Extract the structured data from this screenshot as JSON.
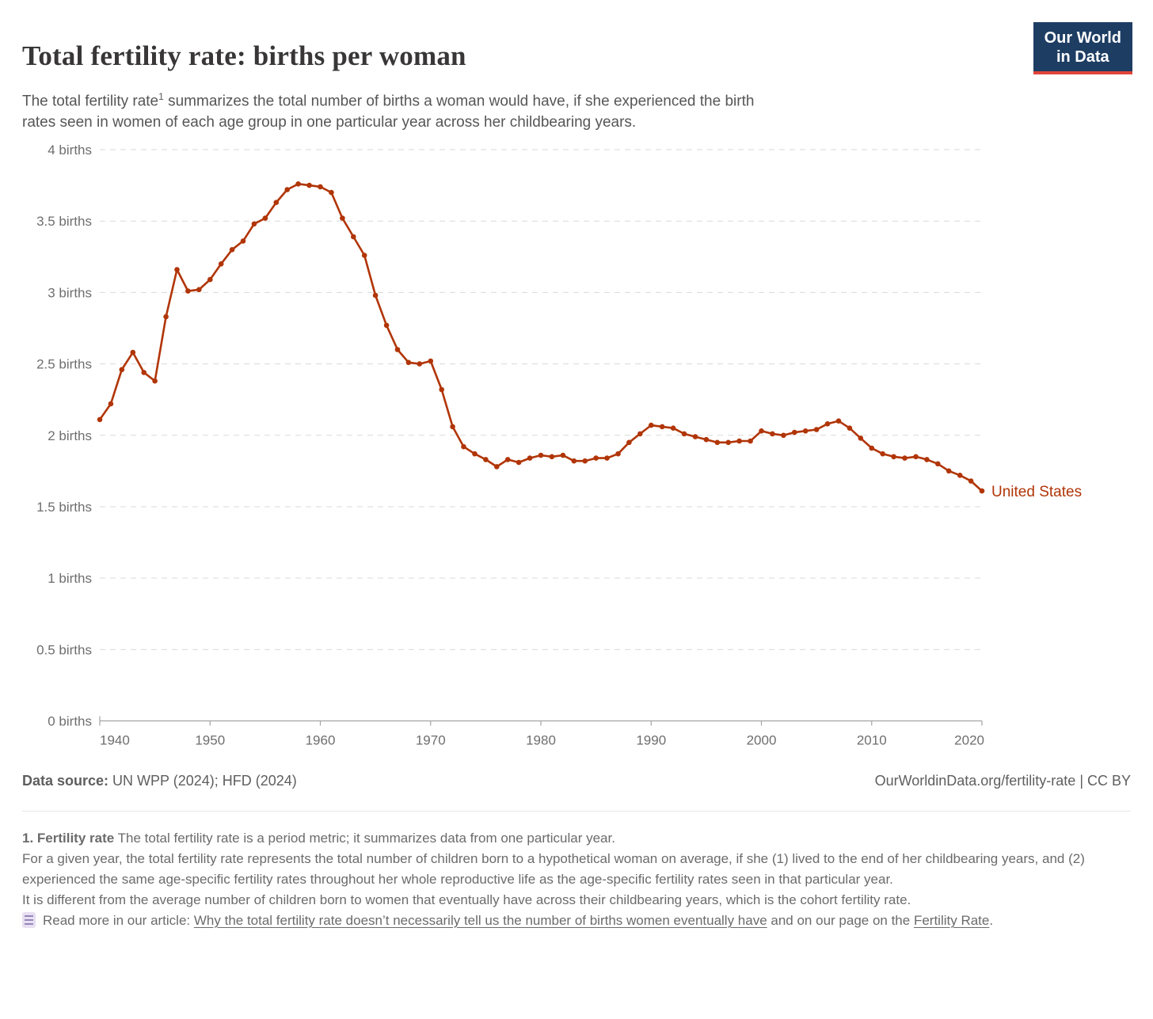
{
  "header": {
    "title": "Total fertility rate: births per woman",
    "subtitle_line1_pre": "The total fertility rate",
    "subtitle_sup": "1",
    "subtitle_line1_post": " summarizes the total number of births a woman would have, if she experienced the birth",
    "subtitle_line2": "rates seen in women of each age group in one particular year across her childbearing years.",
    "logo": {
      "line1": "Our World",
      "line2": "in Data",
      "bg_color": "#1d3d63",
      "accent_color": "#e0433a"
    }
  },
  "chart_data": {
    "type": "line",
    "title": "Total fertility rate: births per woman",
    "xlabel": "",
    "ylabel": "births",
    "ylim": [
      0,
      4
    ],
    "grid": "horizontal dashed",
    "legend_position": "right of last point",
    "x_start": 1940,
    "x_end": 2020,
    "x_ticks": [
      1940,
      1950,
      1960,
      1970,
      1980,
      1990,
      2000,
      2010,
      2020
    ],
    "y_ticks": [
      {
        "v": 0,
        "label": "0 births"
      },
      {
        "v": 0.5,
        "label": "0.5 births"
      },
      {
        "v": 1,
        "label": "1 births"
      },
      {
        "v": 1.5,
        "label": "1.5 births"
      },
      {
        "v": 2,
        "label": "2 births"
      },
      {
        "v": 2.5,
        "label": "2.5 births"
      },
      {
        "v": 3,
        "label": "3 births"
      },
      {
        "v": 3.5,
        "label": "3.5 births"
      },
      {
        "v": 4,
        "label": "4 births"
      }
    ],
    "series": [
      {
        "name": "United States",
        "color": "#b13507",
        "values": [
          2.11,
          2.22,
          2.46,
          2.58,
          2.44,
          2.38,
          2.83,
          3.16,
          3.01,
          3.02,
          3.09,
          3.2,
          3.3,
          3.36,
          3.48,
          3.52,
          3.63,
          3.72,
          3.76,
          3.75,
          3.74,
          3.7,
          3.52,
          3.39,
          3.26,
          2.98,
          2.77,
          2.6,
          2.51,
          2.5,
          2.52,
          2.32,
          2.06,
          1.92,
          1.87,
          1.83,
          1.78,
          1.83,
          1.81,
          1.84,
          1.86,
          1.85,
          1.86,
          1.82,
          1.82,
          1.84,
          1.84,
          1.87,
          1.95,
          2.01,
          2.07,
          2.06,
          2.05,
          2.01,
          1.99,
          1.97,
          1.95,
          1.95,
          1.96,
          1.96,
          2.03,
          2.01,
          2.0,
          2.02,
          2.03,
          2.04,
          2.08,
          2.1,
          2.05,
          1.98,
          1.91,
          1.87,
          1.85,
          1.84,
          1.85,
          1.83,
          1.8,
          1.75,
          1.72,
          1.68,
          1.61
        ]
      }
    ]
  },
  "footer": {
    "datasource_label": "Data source:",
    "datasource_value": " UN WPP (2024); HFD (2024)",
    "attribution": "OurWorldinData.org/fertility-rate | CC BY"
  },
  "footnote": {
    "term": "1. Fertility rate",
    "p1": " The total fertility rate is a period metric; it summarizes data from one particular year.",
    "p2": "For a given year, the total fertility rate represents the total number of children born to a hypothetical woman on average, if she (1) lived to the end of her childbearing years, and (2) experienced the same age-specific fertility rates throughout her whole reproductive life as the age-specific fertility rates seen in that particular year.",
    "p3": "It is different from the average number of children born to women that eventually have across their childbearing years, which is the cohort fertility rate.",
    "read_more_prefix": "Read more in our article: ",
    "link1": "Why the total fertility rate doesn’t necessarily tell us the number of births women eventually have",
    "read_more_mid": " and on our page on the ",
    "link2": "Fertility Rate",
    "read_more_suffix": "."
  }
}
